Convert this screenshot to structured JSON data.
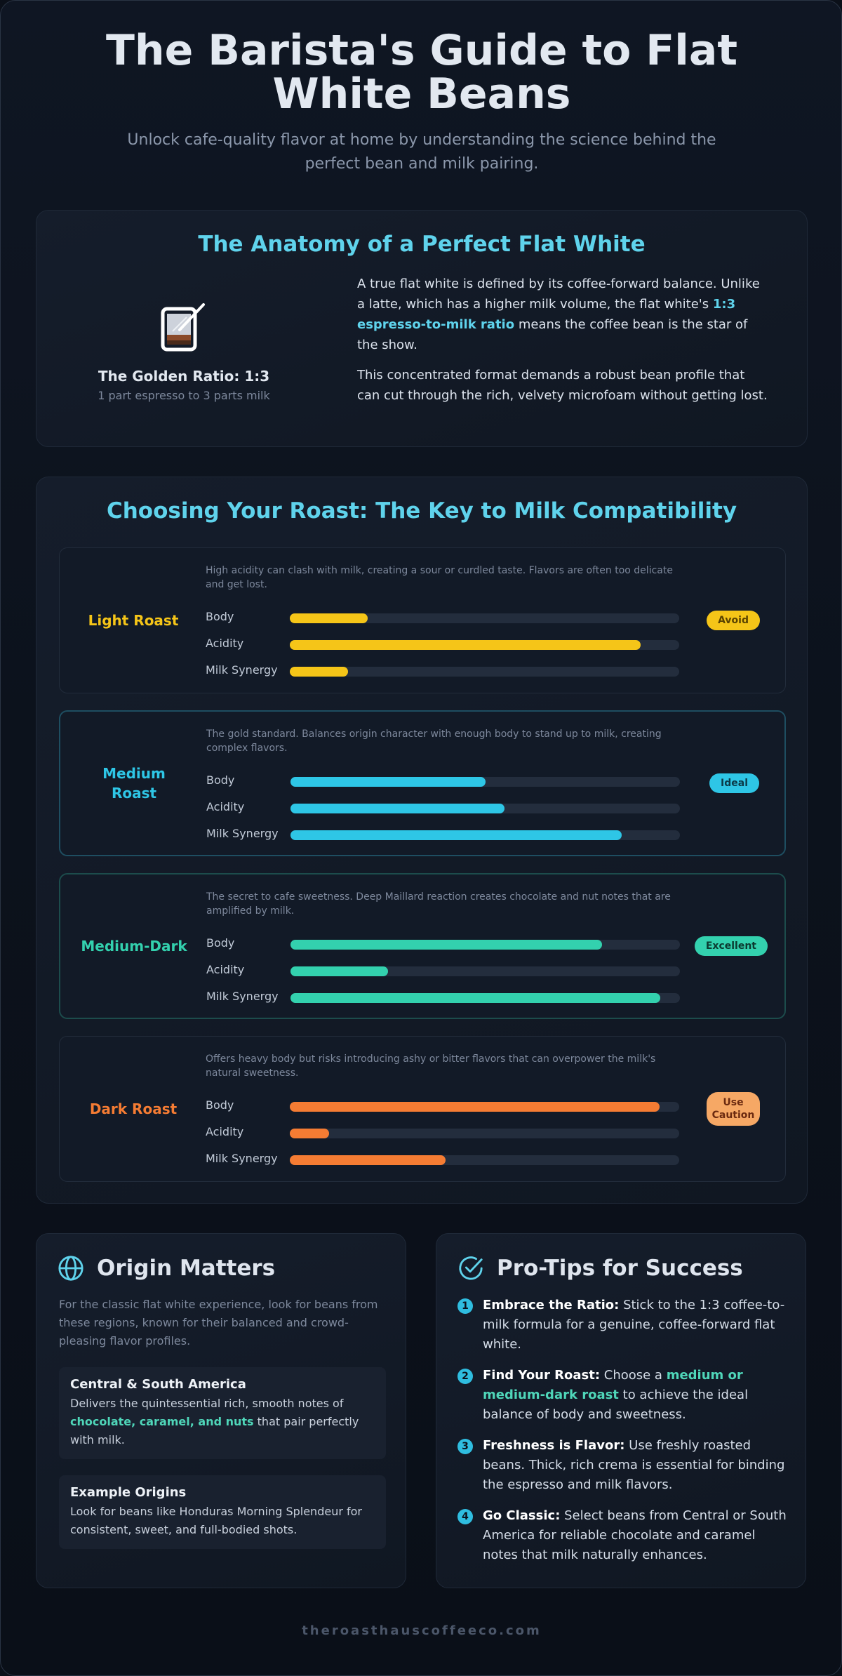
{
  "header": {
    "title": "The Barista's Guide to Flat White Beans",
    "subtitle": "Unlock cafe-quality flavor at home by understanding the science behind the perfect bean and milk pairing."
  },
  "anatomy": {
    "title": "The Anatomy of a Perfect Flat White",
    "icon": "coffee-glass-icon",
    "ratio_label": "The Golden Ratio: 1:3",
    "ratio_sub": "1 part espresso to 3 parts milk",
    "p1_start": "A true flat white is defined by its coffee-forward balance. Unlike a latte, which has a higher milk volume, the flat white's ",
    "p1_highlight": "1:3 espresso-to-milk ratio",
    "p1_end": " means the coffee bean is the star of the show.",
    "p2": "This concentrated format demands a robust bean profile that can cut through the rich, velvety microfoam without getting lost."
  },
  "roasts": {
    "title": "Choosing Your Roast: The Key to Milk Compatibility",
    "metric_labels": [
      "Body",
      "Acidity",
      "Milk Synergy"
    ],
    "items": [
      {
        "name": "Light Roast",
        "description": "High acidity can clash with milk, creating a sour or curdled taste. Flavors are often too delicate and get lost.",
        "badge": "Avoid",
        "color": "#f5c518",
        "body": 0.2,
        "acidity": 0.9,
        "milk_synergy": 0.15
      },
      {
        "name": "Medium Roast",
        "description": "The gold standard. Balances origin character with enough body to stand up to milk, creating complex flavors.",
        "badge": "Ideal",
        "color": "#2ec6e6",
        "body": 0.5,
        "acidity": 0.55,
        "milk_synergy": 0.85
      },
      {
        "name": "Medium-Dark",
        "description": "The secret to cafe sweetness. Deep Maillard reaction creates chocolate and nut notes that are amplified by milk.",
        "badge": "Excellent",
        "color": "#33d1ae",
        "body": 0.8,
        "acidity": 0.25,
        "milk_synergy": 0.95
      },
      {
        "name": "Dark Roast",
        "description": "Offers heavy body but risks introducing ashy or bitter flavors that can overpower the milk's natural sweetness.",
        "badge": "Use Caution",
        "color": "#f57c33",
        "body": 0.95,
        "acidity": 0.1,
        "milk_synergy": 0.4
      }
    ]
  },
  "origin": {
    "title": "Origin Matters",
    "icon": "globe-icon",
    "intro": "For the classic flat white experience, look for beans from these regions, known for their balanced and crowd-pleasing flavor profiles.",
    "box1_title": "Central & South America",
    "box1_start": "Delivers the quintessential rich, smooth notes of ",
    "box1_highlight": "chocolate, caramel, and nuts",
    "box1_end": " that pair perfectly with milk.",
    "box2_title": "Example Origins",
    "box2_text": "Look for beans like Honduras Morning Splendeur for consistent, sweet, and full-bodied shots."
  },
  "tips": {
    "title": "Pro-Tips for Success",
    "icon": "check-circle-icon",
    "items": [
      {
        "num": "1",
        "bold": "Embrace the Ratio:",
        "text": " Stick to the 1:3 coffee-to-milk formula for a genuine, coffee-forward flat white."
      },
      {
        "num": "2",
        "bold": "Find Your Roast:",
        "text_start": " Choose a ",
        "highlight": "medium or medium-dark roast",
        "text_end": " to achieve the ideal balance of body and sweetness."
      },
      {
        "num": "3",
        "bold": "Freshness is Flavor:",
        "text": " Use freshly roasted beans. Thick, rich crema is essential for binding the espresso and milk flavors."
      },
      {
        "num": "4",
        "bold": "Go Classic:",
        "text": " Select beans from Central or South America for reliable chocolate and caramel notes that milk naturally enhances."
      }
    ]
  },
  "footer": {
    "text": "theroasthauscoffeeco.com"
  }
}
